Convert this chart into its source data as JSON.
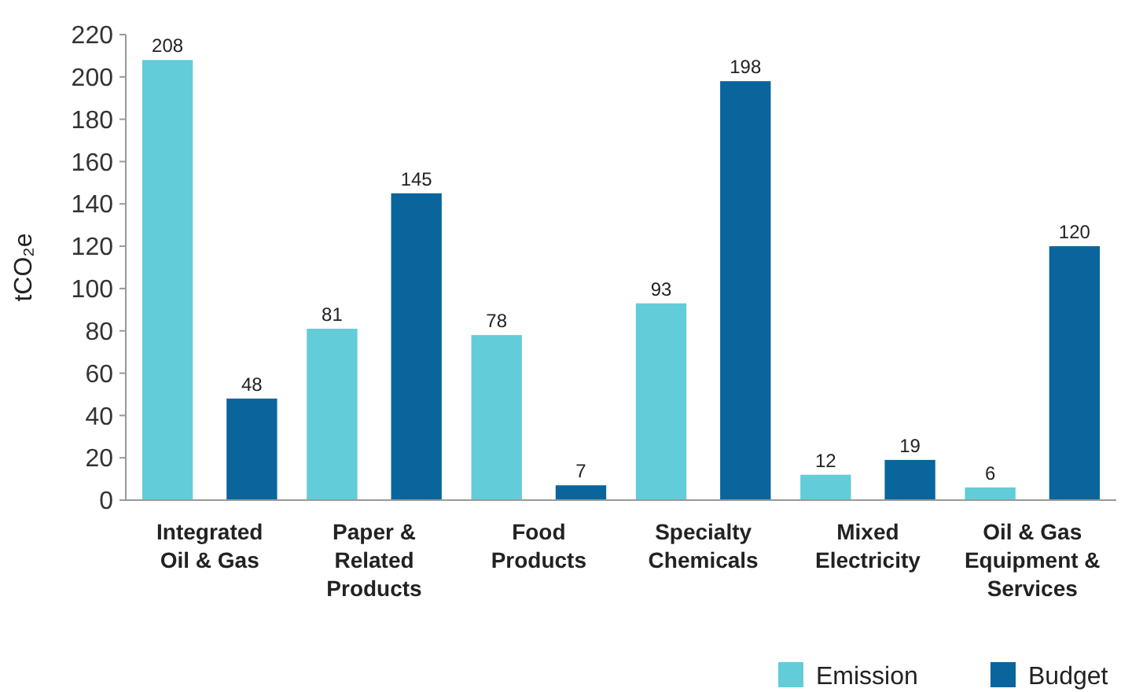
{
  "chart_data": {
    "type": "bar",
    "ylabel": "tCO₂e",
    "categories": [
      "Integrated Oil & Gas",
      "Paper & Related Products",
      "Food Products",
      "Specialty Chemicals",
      "Mixed Electricity",
      "Oil & Gas Equipment & Services"
    ],
    "series": [
      {
        "name": "Emission",
        "color": "#62ccd9",
        "values": [
          208,
          81,
          78,
          93,
          12,
          6
        ]
      },
      {
        "name": "Budget",
        "color": "#0a659c",
        "values": [
          48,
          145,
          7,
          198,
          19,
          120
        ]
      }
    ],
    "ylim": [
      0,
      220
    ],
    "yticks": [
      0,
      20,
      40,
      60,
      80,
      100,
      120,
      140,
      160,
      180,
      200,
      220
    ],
    "grid": false,
    "legend": "bottom right",
    "data_labels": true
  }
}
